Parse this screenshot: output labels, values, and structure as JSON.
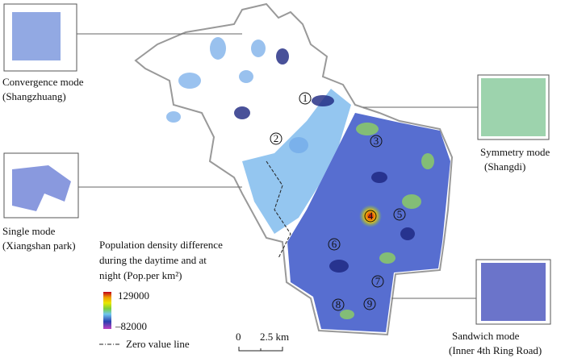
{
  "insets": [
    {
      "title": "Convergence mode",
      "subtitle": "(Shangzhuang)"
    },
    {
      "title": "Symmetry mode",
      "subtitle": "(Shangdi)"
    },
    {
      "title": "Single mode",
      "subtitle": "(Xiangshan park)"
    },
    {
      "title": "Sandwich mode",
      "subtitle": "(Inner 4th Ring Road)"
    }
  ],
  "legend": {
    "title": [
      "Population density difference",
      "during the daytime and at",
      "night (Pop.per km²)"
    ],
    "max": "129000",
    "min": "–82000",
    "zero_line": "Zero value line"
  },
  "scale_bar": {
    "start": "0",
    "end": "2.5 km"
  },
  "sites": [
    "1",
    "2",
    "3",
    "4",
    "5",
    "6",
    "7",
    "8",
    "9"
  ]
}
